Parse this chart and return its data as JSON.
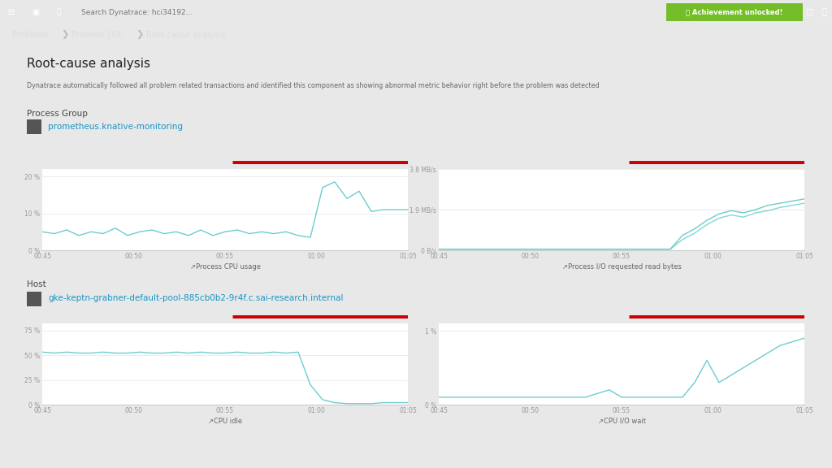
{
  "bg_color": "#e8e8e8",
  "panel_bg": "#ffffff",
  "top_bar_color": "#1c1c1c",
  "breadcrumb_bg": "#888888",
  "green_btn_color": "#73be28",
  "title": "Root-cause analysis",
  "subtitle": "Dynatrace automatically followed all problem related transactions and identified this component as showing abnormal metric behavior right before the problem was detected",
  "process_group_label": "Process Group",
  "process_group_link": "prometheus.knative-monitoring",
  "host_label": "Host",
  "host_link": "gke-keptn-grabner-default-pool-885cb0b2-9r4f.c.sai-research.internal",
  "link_color": "#1496c8",
  "chart1_title": "Process CPU usage",
  "chart1_yticks": [
    "0 %",
    "10 %",
    "20 %"
  ],
  "chart1_yvals": [
    0,
    10,
    20
  ],
  "chart2_title": "Process I/O requested read bytes",
  "chart2_yticks": [
    "0 B/s",
    "1.9 MB/s",
    "3.8 MB/s"
  ],
  "chart2_yvals": [
    0,
    1.9,
    3.8
  ],
  "chart3_title": "CPU idle",
  "chart3_yticks": [
    "0 %",
    "25 %",
    "50 %",
    "75 %"
  ],
  "chart3_yvals": [
    0,
    25,
    50,
    75
  ],
  "chart4_title": "CPU I/O wait",
  "chart4_yticks": [
    "0 %",
    "1 %"
  ],
  "chart4_yvals": [
    0,
    1
  ],
  "xticks": [
    "00:45",
    "00:50",
    "00:55",
    "01:00",
    "01:05"
  ],
  "line_color": "#5bc8c8",
  "red_line_color": "#cc0000",
  "chart1_data_y": [
    5,
    4.5,
    5.5,
    4,
    5,
    4.5,
    6,
    4,
    5,
    5.5,
    4.5,
    5,
    4,
    5.5,
    4,
    5,
    5.5,
    4.5,
    5,
    4.5,
    5,
    4,
    3.5,
    17,
    18.5,
    14,
    16,
    10.5,
    11,
    11,
    11
  ],
  "chart2_data_y": [
    0.05,
    0.05,
    0.05,
    0.05,
    0.05,
    0.05,
    0.05,
    0.05,
    0.05,
    0.05,
    0.05,
    0.05,
    0.05,
    0.05,
    0.05,
    0.05,
    0.05,
    0.05,
    0.05,
    0.05,
    0.7,
    1.0,
    1.4,
    1.7,
    1.85,
    1.75,
    1.9,
    2.1,
    2.2,
    2.3,
    2.4
  ],
  "chart2_data_y2": [
    0.05,
    0.05,
    0.05,
    0.05,
    0.05,
    0.05,
    0.05,
    0.05,
    0.05,
    0.05,
    0.05,
    0.05,
    0.05,
    0.05,
    0.05,
    0.05,
    0.05,
    0.05,
    0.05,
    0.05,
    0.5,
    0.8,
    1.2,
    1.5,
    1.65,
    1.55,
    1.75,
    1.85,
    2.0,
    2.1,
    2.2
  ],
  "chart3_data_y": [
    53,
    52,
    53,
    52,
    52,
    53,
    52,
    52,
    53,
    52,
    52,
    53,
    52,
    53,
    52,
    52,
    53,
    52,
    52,
    53,
    52,
    53,
    20,
    5,
    2,
    1,
    1,
    1,
    2,
    2,
    2
  ],
  "chart4_data_y": [
    0.1,
    0.1,
    0.1,
    0.1,
    0.1,
    0.1,
    0.1,
    0.1,
    0.1,
    0.1,
    0.1,
    0.1,
    0.1,
    0.15,
    0.2,
    0.1,
    0.1,
    0.1,
    0.1,
    0.1,
    0.1,
    0.3,
    0.6,
    0.3,
    0.4,
    0.5,
    0.6,
    0.7,
    0.8,
    0.85,
    0.9
  ]
}
